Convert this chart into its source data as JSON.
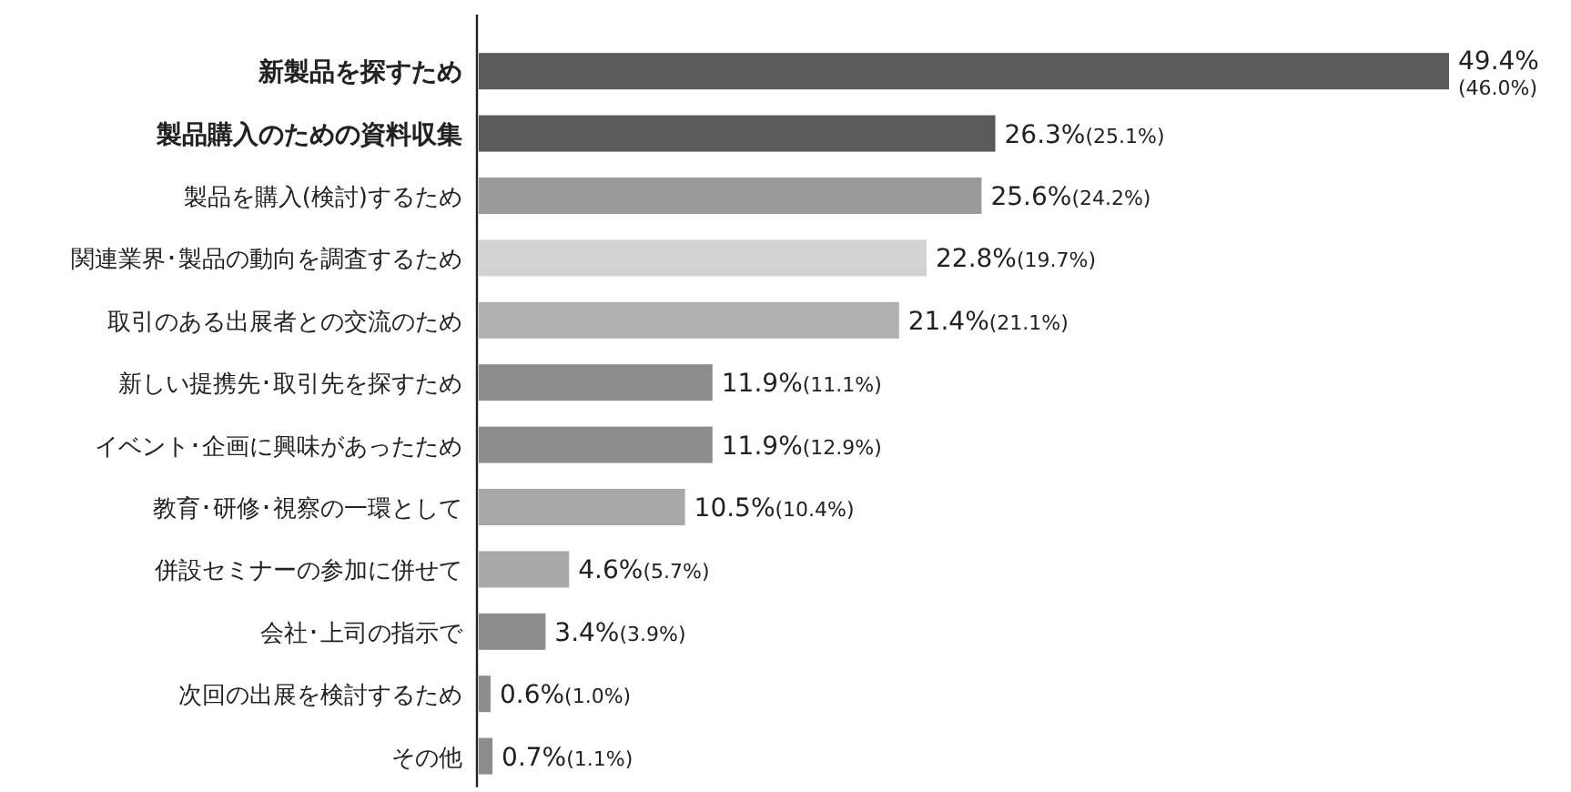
{
  "chart_data": {
    "type": "bar",
    "orientation": "horizontal",
    "categories": [
      "新製品を探すため",
      "製品購入のための資料収集",
      "製品を購入(検討)するため",
      "関連業界･製品の動向を調査するため",
      "取引のある出展者との交流のため",
      "新しい提携先･取引先を探すため",
      "イベント･企画に興味があったため",
      "教育･研修･視察の一環として",
      "併設セミナーの参加に併せて",
      "会社･上司の指示で",
      "次回の出展を検討するため",
      "その他"
    ],
    "values": [
      49.4,
      26.3,
      25.6,
      22.8,
      21.4,
      11.9,
      11.9,
      10.5,
      4.6,
      3.4,
      0.6,
      0.7
    ],
    "colors": [
      "#5a5a5a",
      "#5a5a5a",
      "#9a9a9a",
      "#d2d2d2",
      "#b0b0b0",
      "#8c8c8c",
      "#8c8c8c",
      "#a8a8a8",
      "#a8a8a8",
      "#8c8c8c",
      "#8c8c8c",
      "#8c8c8c"
    ],
    "value_labels": [
      "49.4%(46.0%)",
      "26.3%(25.1%)",
      "25.6%(24.2%)",
      "22.8%(19.7%)",
      "21.4%(21.1%)",
      "11.9%(11.1%)",
      "11.9%(12.9%)",
      "10.5%(10.4%)",
      "4.6%(5.7%)",
      "3.4%(3.9%)",
      "0.6%(1.0%)",
      "0.7%(1.1%)"
    ]
  }
}
